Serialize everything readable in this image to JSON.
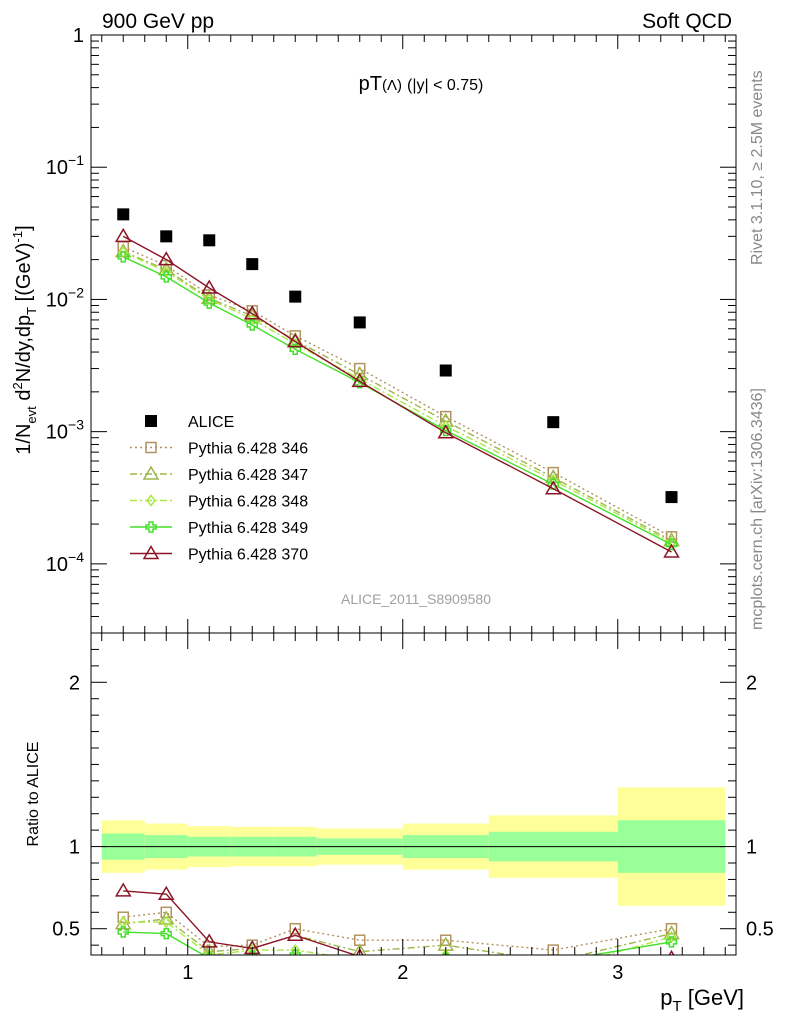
{
  "header": {
    "left": "900 GeV pp",
    "right": "Soft QCD"
  },
  "side_labels": {
    "rivet": "Rivet 3.1.10, ≥ 2.5M events",
    "mcplots": "mcplots.cern.ch [arXiv:1306.3436]"
  },
  "chart_data": [
    {
      "type": "scatter",
      "title_main": "pT",
      "title_particle": "(Λ)",
      "title_cut": "(|y| < 0.75)",
      "watermark": "ALICE_2011_S8909580",
      "ylabel_parts": [
        "1/N",
        "evt",
        " d",
        "2",
        "N/dy,dp",
        "T",
        " [(GeV)",
        "-1",
        "]"
      ],
      "yscale": "log",
      "xlim": [
        0.55,
        3.55
      ],
      "ylim": [
        3e-05,
        1
      ],
      "y_ticks": [
        {
          "v": 1,
          "base": "1",
          "exp": ""
        },
        {
          "v": 0.1,
          "base": "10",
          "exp": "−1"
        },
        {
          "v": 0.01,
          "base": "10",
          "exp": "−2"
        },
        {
          "v": 0.001,
          "base": "10",
          "exp": "−3"
        },
        {
          "v": 0.0001,
          "base": "10",
          "exp": "−4"
        }
      ],
      "legend_position": "lower-left",
      "x": [
        0.7,
        0.9,
        1.1,
        1.3,
        1.5,
        1.8,
        2.2,
        2.7,
        3.25
      ],
      "series": [
        {
          "name": "ALICE",
          "color": "#000000",
          "marker": "square-filled",
          "line": "none",
          "values": [
            0.044,
            0.03,
            0.028,
            0.0185,
            0.0105,
            0.0067,
            0.0029,
            0.00118,
            0.00032
          ]
        },
        {
          "name": "Pythia 6.428 346",
          "color": "#b2935f",
          "marker": "square-open",
          "line": "dotted",
          "values": [
            0.025,
            0.018,
            0.0108,
            0.0082,
            0.0053,
            0.003,
            0.0013,
            0.00049,
            0.00016
          ]
        },
        {
          "name": "Pythia 6.428 347",
          "color": "#9fb54a",
          "marker": "triangle-open",
          "line": "dashdot",
          "values": [
            0.023,
            0.0168,
            0.0102,
            0.0075,
            0.0049,
            0.0027,
            0.0012,
            0.00045,
            0.00015
          ]
        },
        {
          "name": "Pythia 6.428 348",
          "color": "#a9e845",
          "marker": "diamond-open",
          "line": "dashdot",
          "values": [
            0.0228,
            0.0162,
            0.01,
            0.0071,
            0.0046,
            0.0025,
            0.0011,
            0.00043,
            0.000145
          ]
        },
        {
          "name": "Pythia 6.428 349",
          "color": "#44e02a",
          "marker": "cross",
          "line": "solid",
          "values": [
            0.021,
            0.0148,
            0.0094,
            0.0064,
            0.0042,
            0.00235,
            0.00102,
            0.0004,
            0.00014
          ]
        },
        {
          "name": "Pythia 6.428 370",
          "color": "#8c1426",
          "marker": "triangle-open",
          "line": "solid",
          "values": [
            0.03,
            0.02,
            0.0122,
            0.0078,
            0.0048,
            0.0024,
            0.00098,
            0.00037,
            0.000123
          ]
        }
      ]
    },
    {
      "type": "scatter",
      "ylabel": "Ratio to ALICE",
      "xlabel_base": "p",
      "xlabel_sub": "T",
      "xlabel_unit": " [GeV]",
      "xlim": [
        0.55,
        3.55
      ],
      "ylim": [
        0.34,
        2.3
      ],
      "x_ticks": [
        {
          "v": 1,
          "label": "1"
        },
        {
          "v": 2,
          "label": "2"
        },
        {
          "v": 3,
          "label": "3"
        }
      ],
      "y_ticks": [
        {
          "v": 0.5,
          "label": "0.5"
        },
        {
          "v": 1,
          "label": "1"
        },
        {
          "v": 2,
          "label": "2"
        }
      ],
      "bin_edges": [
        0.6,
        0.8,
        1.0,
        1.2,
        1.4,
        1.6,
        2.0,
        2.4,
        3.0,
        3.5
      ],
      "band_inner": [
        [
          0.92,
          1.08
        ],
        [
          0.93,
          1.07
        ],
        [
          0.94,
          1.06
        ],
        [
          0.94,
          1.06
        ],
        [
          0.94,
          1.06
        ],
        [
          0.95,
          1.05
        ],
        [
          0.93,
          1.07
        ],
        [
          0.91,
          1.09
        ],
        [
          0.84,
          1.16
        ]
      ],
      "band_outer": [
        [
          0.84,
          1.16
        ],
        [
          0.86,
          1.14
        ],
        [
          0.875,
          1.125
        ],
        [
          0.88,
          1.12
        ],
        [
          0.88,
          1.12
        ],
        [
          0.89,
          1.11
        ],
        [
          0.86,
          1.14
        ],
        [
          0.81,
          1.19
        ],
        [
          0.64,
          1.36
        ]
      ],
      "x": [
        0.7,
        0.9,
        1.1,
        1.3,
        1.5,
        1.8,
        2.2,
        2.7,
        3.25
      ],
      "series": [
        {
          "name": "Pythia 6.428 346",
          "color": "#b2935f",
          "marker": "square-open",
          "line": "dotted",
          "values": [
            0.57,
            0.6,
            0.39,
            0.4,
            0.5,
            0.43,
            0.43,
            0.37,
            0.5
          ]
        },
        {
          "name": "Pythia 6.428 347",
          "color": "#9fb54a",
          "marker": "triangle-open",
          "line": "dashdot",
          "values": [
            0.53,
            0.56,
            0.36,
            0.38,
            0.46,
            0.36,
            0.4,
            0.3,
            0.47
          ]
        },
        {
          "name": "Pythia 6.428 348",
          "color": "#a9e845",
          "marker": "diamond-open",
          "line": "dashdot",
          "values": [
            0.54,
            0.54,
            0.34,
            0.37,
            0.37,
            0.31,
            0.34,
            0.25,
            0.45
          ]
        },
        {
          "name": "Pythia 6.428 349",
          "color": "#44e02a",
          "marker": "cross",
          "line": "solid",
          "values": [
            0.48,
            0.47,
            0.32,
            0.33,
            0.34,
            0.3,
            0.32,
            0.3,
            0.42
          ]
        },
        {
          "name": "Pythia 6.428 370",
          "color": "#8c1426",
          "marker": "triangle-open",
          "line": "solid",
          "values": [
            0.73,
            0.71,
            0.42,
            0.38,
            0.46,
            0.33,
            0.3,
            0.28,
            0.32
          ]
        }
      ]
    }
  ]
}
